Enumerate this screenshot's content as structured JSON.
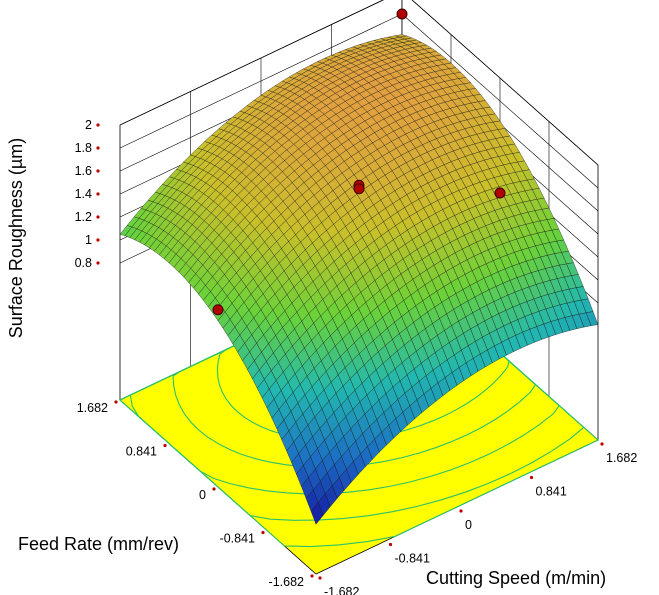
{
  "chart_data": {
    "type": "surface3d",
    "xlabel": "Cutting Speed (m/min)",
    "ylabel": "Feed Rate (mm/rev)",
    "zlabel": "Surface Roughness (µm)",
    "x_ticks": [
      "-1.682",
      "-0.841",
      "0",
      "0.841",
      "1.682"
    ],
    "y_ticks": [
      "-1.682",
      "-0.841",
      "0",
      "0.841",
      "1.682"
    ],
    "z_ticks": [
      "0.8",
      "1",
      "1.2",
      "1.4",
      "1.6",
      "1.8",
      "2"
    ],
    "xlim": [
      -1.682,
      1.682
    ],
    "ylim": [
      -1.682,
      1.682
    ],
    "zlim": [
      0.6,
      2.0
    ],
    "grid": true,
    "colormap": [
      "#1515a0",
      "#1c6fc4",
      "#22b8b0",
      "#6ad23a",
      "#c9c02a",
      "#e2a040"
    ],
    "floor_color": "#ffff00",
    "contour_color": "#2cc06a",
    "surface_model": {
      "description_free": true,
      "terms": {
        "intercept": 1.68,
        "x": 0.17,
        "y": 0.3,
        "x2": -0.12,
        "y2": -0.18,
        "xy": 0.0
      }
    },
    "design_points": [
      {
        "x": -1.682,
        "y": 0.0,
        "z": 1.15
      },
      {
        "x": 0.0,
        "y": 0.0,
        "z": 1.65
      },
      {
        "x": 0.0,
        "y": 0.0,
        "z": 1.62
      },
      {
        "x": 1.682,
        "y": 1.682,
        "z": 1.8
      },
      {
        "x": 1.682,
        "y": 0.0,
        "z": 1.0
      }
    ]
  }
}
